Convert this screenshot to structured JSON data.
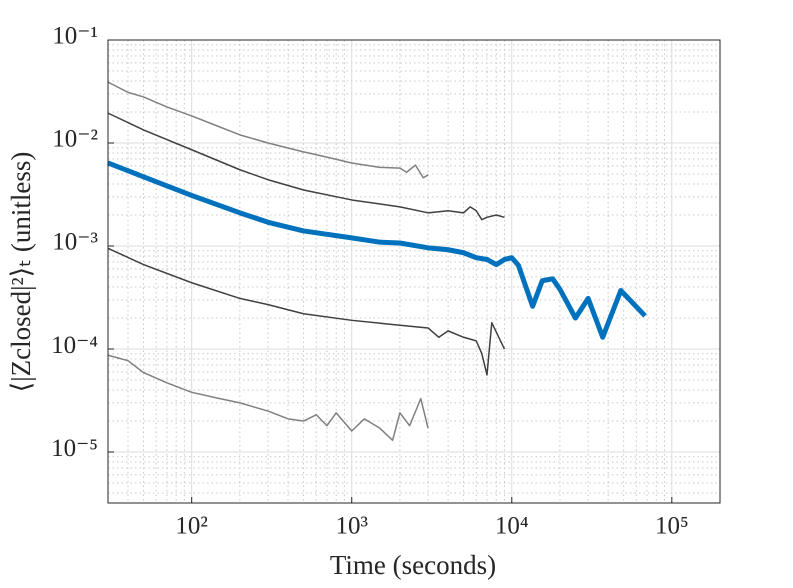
{
  "chart_data": {
    "type": "line",
    "xlabel": "Time (seconds)",
    "ylabel": "⟨|Zclosed|²⟩ₜ (unitless)",
    "log_x": true,
    "log_y": true,
    "grid": true,
    "minor_grid": true,
    "xlim": [
      30,
      200000
    ],
    "ylim": [
      3.2e-06,
      0.1
    ],
    "xticks": [
      {
        "value": 100,
        "label": "10²"
      },
      {
        "value": 1000,
        "label": "10³"
      },
      {
        "value": 10000,
        "label": "10⁴"
      },
      {
        "value": 100000,
        "label": "10⁵"
      }
    ],
    "yticks": [
      {
        "value": 1e-05,
        "label": "10⁻⁵"
      },
      {
        "value": 0.0001,
        "label": "10⁻⁴"
      },
      {
        "value": 0.001,
        "label": "10⁻³"
      },
      {
        "value": 0.01,
        "label": "10⁻²"
      },
      {
        "value": 0.1,
        "label": "10⁻¹"
      }
    ],
    "series": [
      {
        "color": "#808080",
        "width": 1.5,
        "x": [
          30,
          40,
          50,
          70,
          100,
          150,
          200,
          300,
          500,
          700,
          1000,
          1500,
          2000,
          2200,
          2500,
          2800,
          3000
        ],
        "values": [
          0.039,
          0.031,
          0.028,
          0.0224,
          0.0183,
          0.0143,
          0.012,
          0.01,
          0.0082,
          0.0073,
          0.0064,
          0.0058,
          0.0057,
          0.0052,
          0.0061,
          0.0046,
          0.0049
        ]
      },
      {
        "color": "#404040",
        "width": 1.5,
        "x": [
          30,
          50,
          100,
          200,
          300,
          500,
          1000,
          2000,
          3000,
          4000,
          5000,
          5500,
          6000,
          6500,
          7000,
          8000,
          9000
        ],
        "values": [
          0.0195,
          0.0134,
          0.0086,
          0.0055,
          0.0044,
          0.0035,
          0.0028,
          0.0024,
          0.0021,
          0.0022,
          0.0021,
          0.0024,
          0.0022,
          0.0018,
          0.0019,
          0.002,
          0.0019
        ]
      },
      {
        "color": "#0072bd",
        "width": 5,
        "x": [
          30,
          50,
          100,
          200,
          300,
          500,
          1000,
          1500,
          2000,
          3000,
          4000,
          5000,
          6000,
          7000,
          8000,
          9000,
          10000,
          11000,
          13500,
          15500,
          18000,
          20000,
          25000,
          30000,
          37000,
          48000,
          68000
        ],
        "values": [
          0.0064,
          0.0047,
          0.0031,
          0.0021,
          0.0017,
          0.0014,
          0.0012,
          0.00109,
          0.00107,
          0.00096,
          0.00092,
          0.00086,
          0.00077,
          0.00074,
          0.00066,
          0.00074,
          0.00077,
          0.00065,
          0.00026,
          0.00046,
          0.00048,
          0.00038,
          0.0002,
          0.00031,
          0.00013,
          0.00037,
          0.00021
        ]
      },
      {
        "color": "#404040",
        "width": 1.5,
        "x": [
          30,
          50,
          100,
          200,
          300,
          500,
          1000,
          2000,
          3000,
          3500,
          4000,
          5000,
          6000,
          6500,
          7000,
          7500,
          8500,
          9000
        ],
        "values": [
          0.00095,
          0.00066,
          0.00044,
          0.00031,
          0.00027,
          0.00022,
          0.00019,
          0.00017,
          0.00016,
          0.00013,
          0.00015,
          0.00013,
          0.00012,
          9e-05,
          5.6e-05,
          0.00018,
          0.00012,
          0.0001
        ]
      },
      {
        "color": "#808080",
        "width": 1.5,
        "x": [
          30,
          40,
          50,
          70,
          100,
          150,
          200,
          300,
          400,
          500,
          600,
          700,
          800,
          1000,
          1200,
          1500,
          1800,
          2000,
          2300,
          2700,
          3000
        ],
        "values": [
          8.7e-05,
          7.7e-05,
          5.9e-05,
          4.7e-05,
          3.8e-05,
          3.3e-05,
          3e-05,
          2.5e-05,
          2.1e-05,
          2e-05,
          2.3e-05,
          1.8e-05,
          2.4e-05,
          1.6e-05,
          2.1e-05,
          1.7e-05,
          1.3e-05,
          2.4e-05,
          1.8e-05,
          3.3e-05,
          1.7e-05
        ]
      }
    ]
  }
}
